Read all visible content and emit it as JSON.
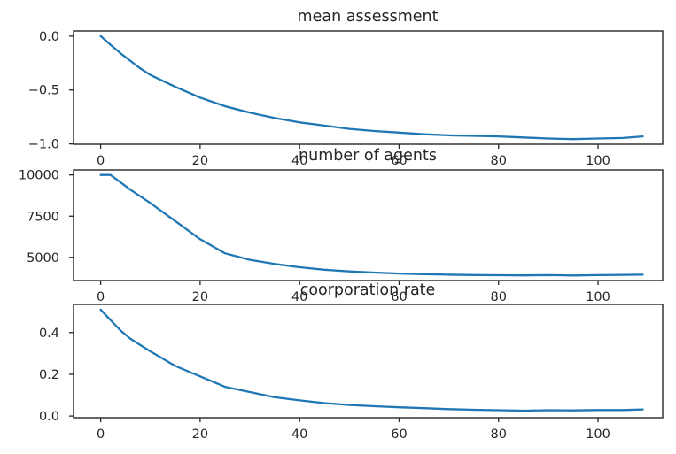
{
  "figure": {
    "background": "#ffffff",
    "line_color": "#1f77b4",
    "axis_color": "#262626",
    "tick_text_color": "#262626"
  },
  "chart_data": [
    {
      "type": "line",
      "title": "mean assessment",
      "xlabel": "",
      "ylabel": "",
      "grid": false,
      "legend": null,
      "xlim": [
        -5.45,
        113.0
      ],
      "ylim": [
        -1.003,
        0.048
      ],
      "xticks": {
        "values": [
          0,
          20,
          40,
          60,
          80,
          100
        ],
        "labels": [
          "0",
          "20",
          "40",
          "60",
          "80",
          "100"
        ]
      },
      "yticks": {
        "values": [
          0.0,
          -0.5,
          -1.0
        ],
        "labels": [
          "0.0",
          "−0.5",
          "−1.0"
        ]
      },
      "x": [
        0,
        2,
        4,
        6,
        8,
        10,
        15,
        20,
        25,
        30,
        35,
        40,
        45,
        50,
        55,
        60,
        65,
        70,
        75,
        80,
        85,
        90,
        95,
        100,
        105,
        109
      ],
      "y": [
        0.0,
        -0.08,
        -0.16,
        -0.23,
        -0.3,
        -0.36,
        -0.47,
        -0.57,
        -0.65,
        -0.71,
        -0.76,
        -0.8,
        -0.83,
        -0.86,
        -0.88,
        -0.895,
        -0.91,
        -0.92,
        -0.925,
        -0.93,
        -0.94,
        -0.95,
        -0.955,
        -0.95,
        -0.945,
        -0.93
      ]
    },
    {
      "type": "line",
      "title": "number of agents",
      "xlabel": "",
      "ylabel": "",
      "grid": false,
      "legend": null,
      "xlim": [
        -5.45,
        113.0
      ],
      "ylim": [
        3595,
        10305
      ],
      "xticks": {
        "values": [
          0,
          20,
          40,
          60,
          80,
          100
        ],
        "labels": [
          "0",
          "20",
          "40",
          "60",
          "80",
          "100"
        ]
      },
      "yticks": {
        "values": [
          10000,
          7500,
          5000
        ],
        "labels": [
          "10000",
          "7500",
          "5000"
        ]
      },
      "x": [
        0,
        2,
        4,
        6,
        8,
        10,
        15,
        20,
        25,
        30,
        35,
        40,
        45,
        50,
        55,
        60,
        65,
        70,
        75,
        80,
        85,
        90,
        95,
        100,
        105,
        109
      ],
      "y": [
        10000,
        10000,
        9550,
        9100,
        8700,
        8300,
        7200,
        6100,
        5250,
        4850,
        4600,
        4400,
        4250,
        4150,
        4080,
        4020,
        3980,
        3950,
        3930,
        3915,
        3905,
        3920,
        3900,
        3925,
        3940,
        3950
      ]
    },
    {
      "type": "line",
      "title": "coorporation rate",
      "xlabel": "",
      "ylabel": "",
      "grid": false,
      "legend": null,
      "xlim": [
        -5.45,
        113.0
      ],
      "ylim": [
        -0.008,
        0.535
      ],
      "xticks": {
        "values": [
          0,
          20,
          40,
          60,
          80,
          100
        ],
        "labels": [
          "0",
          "20",
          "40",
          "60",
          "80",
          "100"
        ]
      },
      "yticks": {
        "values": [
          0.4,
          0.2,
          0.0
        ],
        "labels": [
          "0.4",
          "0.2",
          "0.0"
        ]
      },
      "x": [
        0,
        2,
        4,
        6,
        8,
        10,
        15,
        20,
        25,
        30,
        35,
        40,
        45,
        50,
        55,
        60,
        65,
        70,
        75,
        80,
        85,
        90,
        95,
        100,
        105,
        109
      ],
      "y": [
        0.51,
        0.46,
        0.41,
        0.37,
        0.34,
        0.31,
        0.24,
        0.19,
        0.14,
        0.115,
        0.09,
        0.075,
        0.062,
        0.053,
        0.047,
        0.042,
        0.038,
        0.033,
        0.03,
        0.028,
        0.026,
        0.028,
        0.027,
        0.029,
        0.029,
        0.032
      ]
    }
  ]
}
